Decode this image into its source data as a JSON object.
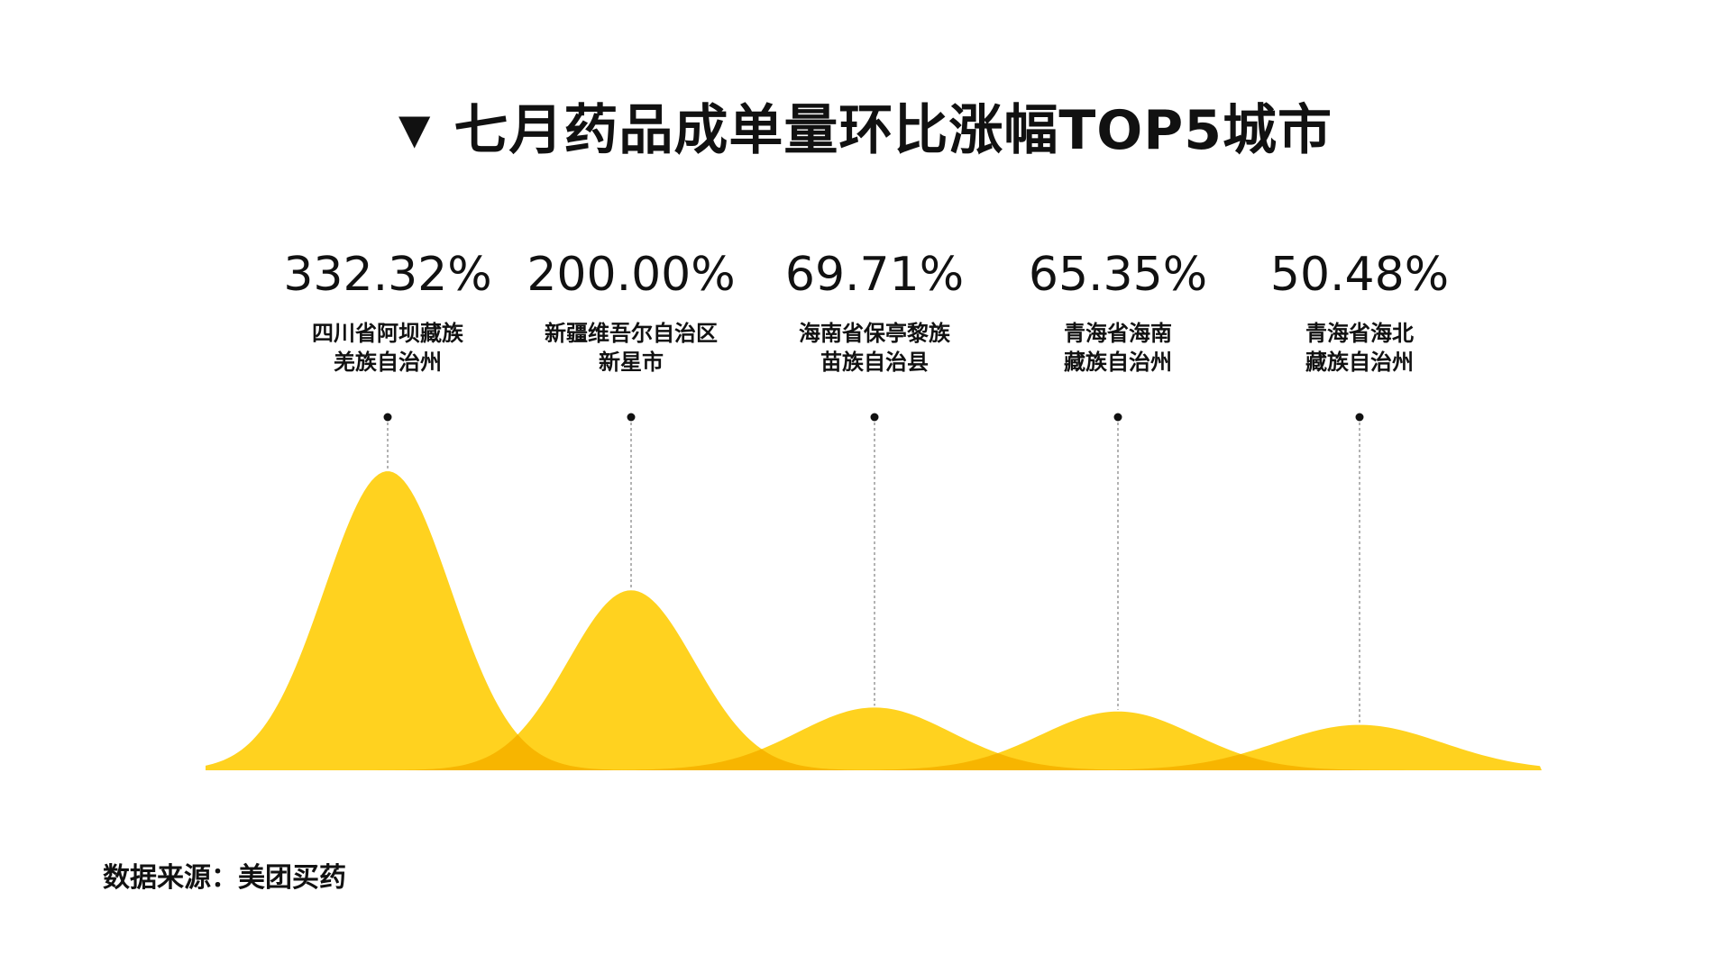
{
  "title": {
    "marker": "▼",
    "text": "七月药品成单量环比涨幅TOP5城市"
  },
  "source": {
    "label": "数据来源：",
    "value": "美团买药"
  },
  "colors": {
    "fill": "#FFD21F",
    "overlap": "#F7B500",
    "text": "#111111",
    "guide": "#9a9a9a"
  },
  "chart_data": {
    "type": "area",
    "title": "七月药品成单量环比涨幅TOP5城市",
    "unit": "%",
    "categories": [
      [
        "四川省阿坝藏族",
        "羌族自治州"
      ],
      [
        "新疆维吾尔自治区",
        "新星市"
      ],
      [
        "海南省保亭黎族",
        "苗族自治县"
      ],
      [
        "青海省海南",
        "藏族自治州"
      ],
      [
        "青海省海北",
        "藏族自治州"
      ]
    ],
    "values": [
      332.32,
      200.0,
      69.71,
      65.35,
      50.48
    ],
    "value_labels": [
      "332.32%",
      "200.00%",
      "69.71%",
      "65.35%",
      "50.48%"
    ],
    "grid": false,
    "legend": "none"
  }
}
